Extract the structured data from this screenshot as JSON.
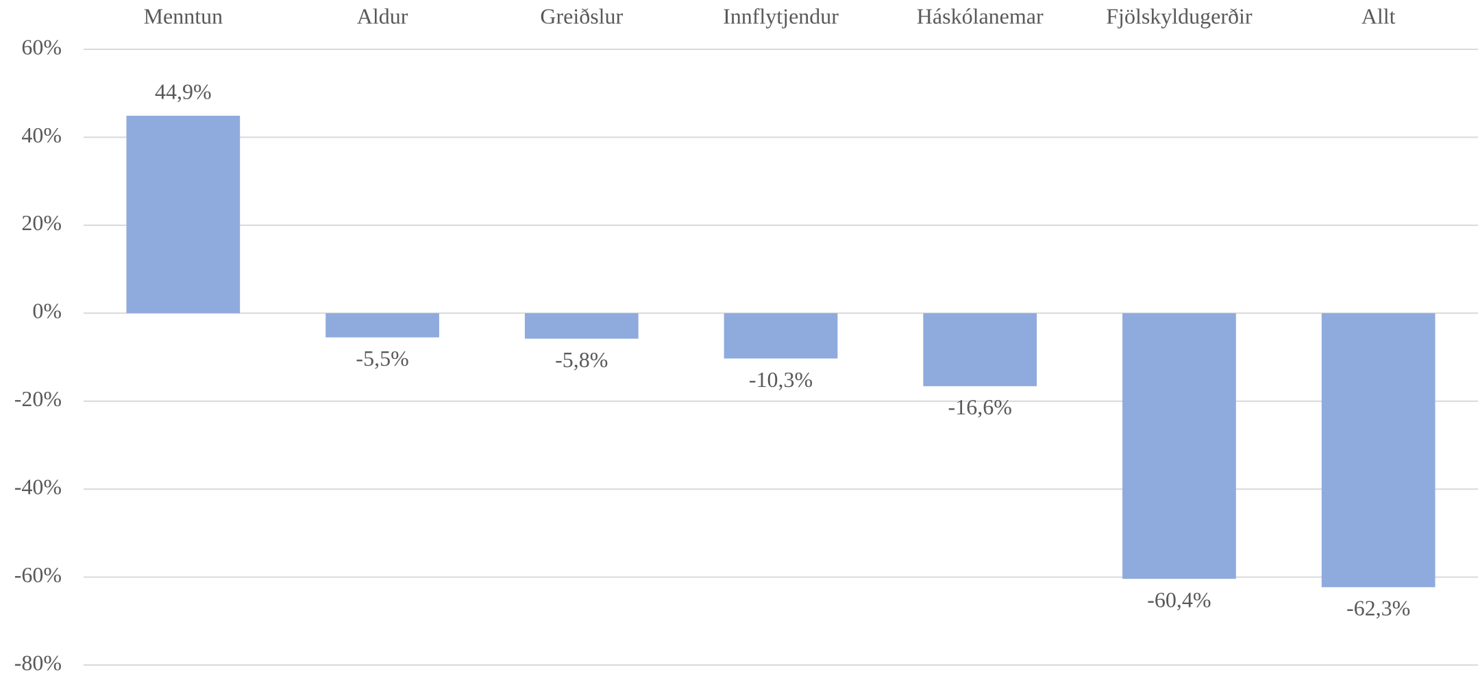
{
  "chart_data": {
    "type": "bar",
    "categories": [
      "Menntun",
      "Aldur",
      "Greiðslur",
      "Innflytjendur",
      "Háskólanemar",
      "Fjölskyldugerðir",
      "Allt"
    ],
    "values": [
      44.9,
      -5.5,
      -5.8,
      -10.3,
      -16.6,
      -60.4,
      -62.3
    ],
    "value_labels": [
      "44,9%",
      "-5,5%",
      "-5,8%",
      "-10,3%",
      "-16,6%",
      "-60,4%",
      "-62,3%"
    ],
    "color": "#8faadc",
    "ylim": [
      -80,
      60
    ],
    "yticks": [
      {
        "value": -80,
        "label": "-80%"
      },
      {
        "value": -60,
        "label": "-60%"
      },
      {
        "value": -40,
        "label": "-40%"
      },
      {
        "value": -20,
        "label": "-20%"
      },
      {
        "value": 0,
        "label": "0%"
      },
      {
        "value": 20,
        "label": "20%"
      },
      {
        "value": 40,
        "label": "40%"
      },
      {
        "value": 60,
        "label": "60%"
      }
    ],
    "grid": true
  }
}
